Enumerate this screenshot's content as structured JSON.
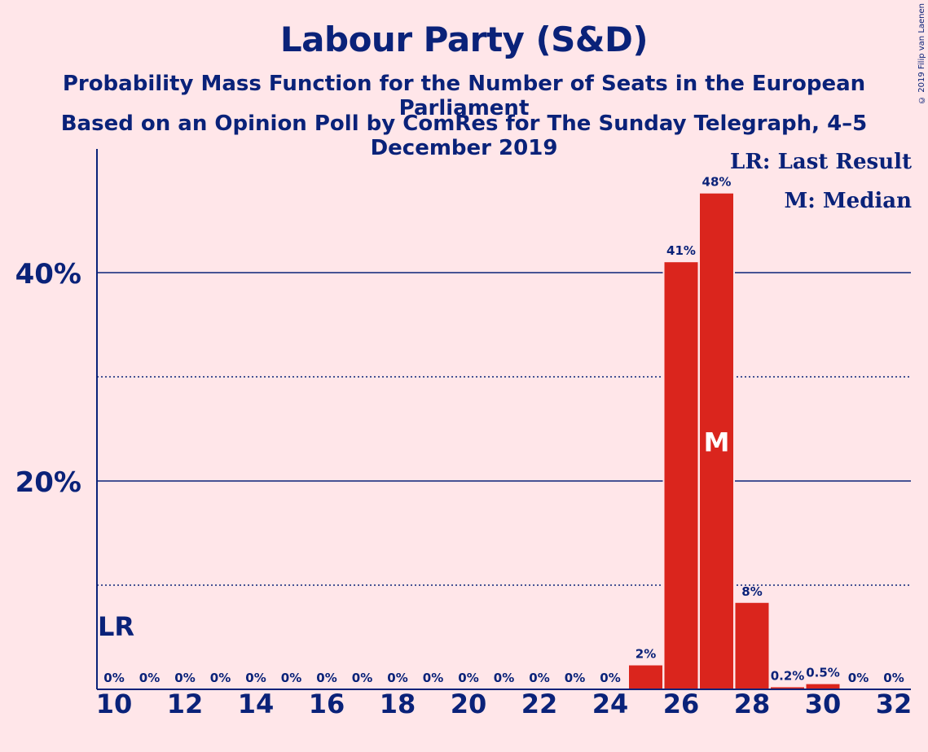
{
  "header": {
    "title": "Labour Party (S&D)",
    "subtitle1": "Probability Mass Function for the Number of Seats in the European Parliament",
    "subtitle2": "Based on an Opinion Poll by ComRes for The Sunday Telegraph, 4–5 December 2019",
    "copyright": "© 2019 Filip van Laenen"
  },
  "legend": {
    "last_result": "LR: Last Result",
    "median": "M: Median"
  },
  "colors": {
    "background": "#FFE6E9",
    "text": "#0A2279",
    "bar": "#DA251D",
    "gridline": "#0A2279"
  },
  "chart_data": {
    "type": "bar",
    "xlabel": "",
    "ylabel": "",
    "x": [
      10,
      11,
      12,
      13,
      14,
      15,
      16,
      17,
      18,
      19,
      20,
      21,
      22,
      23,
      24,
      25,
      26,
      27,
      28,
      29,
      30,
      31,
      32
    ],
    "values": [
      0,
      0,
      0,
      0,
      0,
      0,
      0,
      0,
      0,
      0,
      0,
      0,
      0,
      0,
      0,
      2.3,
      41,
      47.6,
      8.3,
      0.2,
      0.5,
      0,
      0
    ],
    "data_labels": [
      "0%",
      "0%",
      "0%",
      "0%",
      "0%",
      "0%",
      "0%",
      "0%",
      "0%",
      "0%",
      "0%",
      "0%",
      "0%",
      "0%",
      "0%",
      "2%",
      "41%",
      "48%",
      "8%",
      "0.2%",
      "0.5%",
      "0%",
      "0%"
    ],
    "x_tick_labels": [
      "10",
      "12",
      "14",
      "16",
      "18",
      "20",
      "22",
      "24",
      "26",
      "28",
      "30",
      "32"
    ],
    "x_ticks": [
      10,
      12,
      14,
      16,
      18,
      20,
      22,
      24,
      26,
      28,
      30,
      32
    ],
    "y_ticks": [
      20,
      40
    ],
    "y_tick_labels": [
      "20%",
      "40%"
    ],
    "minor_gridlines": [
      10,
      30
    ],
    "ylim": [
      0,
      52
    ],
    "last_result": {
      "seats": 10,
      "label": "LR"
    },
    "median": {
      "seats": 27,
      "label": "M"
    },
    "grid": true,
    "legend_position": "top-right"
  }
}
